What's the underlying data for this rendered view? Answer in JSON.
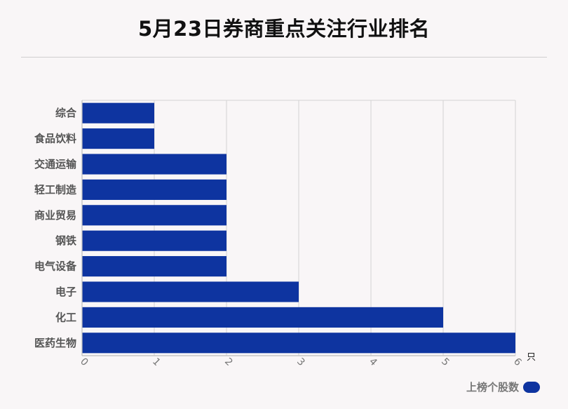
{
  "colors": {
    "bar": "#0e34a0",
    "grid": "#d3d3d3",
    "axis": "#bdbdbd",
    "category_text": "#555555",
    "tick_text": "#777777"
  },
  "chart_data": {
    "type": "bar",
    "orientation": "horizontal",
    "title": "5月23日券商重点关注行业排名",
    "categories": [
      "综合",
      "食品饮料",
      "交通运输",
      "轻工制造",
      "商业贸易",
      "钢铁",
      "电气设备",
      "电子",
      "化工",
      "医药生物"
    ],
    "series": [
      {
        "name": "上榜个股数",
        "values": [
          1,
          1,
          2,
          2,
          2,
          2,
          2,
          3,
          5,
          6
        ]
      }
    ],
    "xlim": [
      0,
      6
    ],
    "xticks": [
      0,
      1,
      2,
      3,
      4,
      5,
      6
    ],
    "x_unit": "只",
    "grid": true,
    "legend_position": "bottom-right"
  }
}
